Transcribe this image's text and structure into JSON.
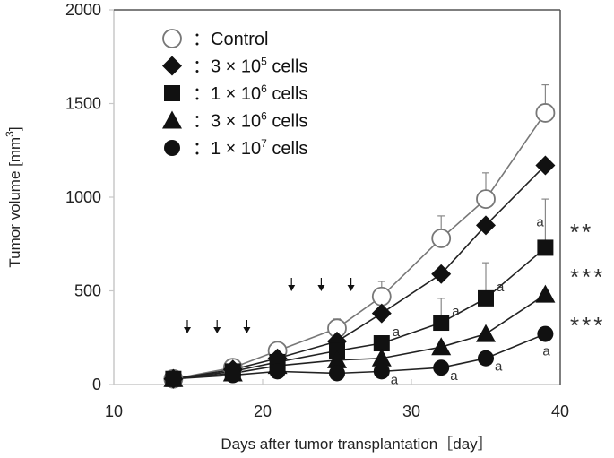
{
  "chart_data": {
    "type": "line",
    "title": "",
    "xlabel": "Days after tumor transplantation［day］",
    "ylabel": "Tumor volume [mm3]",
    "ylabel_main": "Tumor volume [mm",
    "ylabel_sup": "3",
    "ylabel_end": "]",
    "xlim": [
      10,
      40
    ],
    "ylim": [
      0,
      2000
    ],
    "xticks": [
      "10",
      "20",
      "30",
      "40"
    ],
    "xtick_values": [
      10,
      20,
      30,
      40
    ],
    "yticks": [
      "0",
      "500",
      "1000",
      "1500",
      "2000"
    ],
    "ytick_values": [
      0,
      500,
      1000,
      1500,
      2000
    ],
    "grid": false,
    "legend_position": "top-left",
    "x": [
      14,
      18,
      21,
      25,
      28,
      32,
      35,
      39
    ],
    "series": [
      {
        "name": "Control",
        "label_prefix": "：",
        "label_main": "Control",
        "label_sup": "",
        "label_end": "",
        "marker": "circle-open",
        "color": "#777777",
        "values": [
          30,
          90,
          180,
          300,
          470,
          780,
          990,
          1450
        ],
        "errors": [
          0,
          10,
          30,
          50,
          80,
          120,
          140,
          150
        ]
      },
      {
        "name": "3 × 10^5 cells",
        "label_prefix": "：",
        "label_main": "3 × 10",
        "label_sup": "5",
        "label_end": " cells",
        "marker": "diamond",
        "color": "#111111",
        "values": [
          30,
          80,
          140,
          230,
          380,
          590,
          850,
          1170
        ],
        "errors": [
          0,
          0,
          0,
          0,
          0,
          0,
          0,
          0
        ]
      },
      {
        "name": "1 × 10^6 cells",
        "label_prefix": "：",
        "label_main": "1 × 10",
        "label_sup": "6",
        "label_end": " cells",
        "marker": "square",
        "color": "#111111",
        "values": [
          30,
          70,
          120,
          180,
          220,
          330,
          460,
          730
        ],
        "errors": [
          0,
          0,
          0,
          0,
          40,
          130,
          190,
          260
        ]
      },
      {
        "name": "3 × 10^6 cells",
        "label_prefix": "：",
        "label_main": "3 × 10",
        "label_sup": "6",
        "label_end": " cells",
        "marker": "triangle",
        "color": "#111111",
        "values": [
          30,
          60,
          100,
          130,
          140,
          200,
          270,
          480
        ],
        "errors": [
          0,
          0,
          0,
          0,
          0,
          0,
          0,
          0
        ]
      },
      {
        "name": "1 × 10^7 cells",
        "label_prefix": "：",
        "label_main": "1 × 10",
        "label_sup": "7",
        "label_end": " cells",
        "marker": "circle",
        "color": "#111111",
        "values": [
          30,
          50,
          70,
          60,
          70,
          90,
          140,
          270
        ],
        "errors": [
          0,
          0,
          0,
          0,
          0,
          0,
          0,
          0
        ]
      }
    ],
    "annotations": {
      "dose_arrows_days": [
        15,
        17,
        19,
        22,
        24,
        26
      ],
      "letter_marks": [
        {
          "text": "a",
          "series": "1 × 10^6 cells",
          "x": 28
        },
        {
          "text": "a",
          "series": "1 × 10^6 cells",
          "x": 32
        },
        {
          "text": "a",
          "series": "1 × 10^6 cells",
          "x": 35
        },
        {
          "text": "a",
          "series": "1 × 10^6 cells",
          "x": 39
        },
        {
          "text": "a",
          "series": "1 × 10^7 cells",
          "x": 28
        },
        {
          "text": "a",
          "series": "1 × 10^7 cells",
          "x": 32
        },
        {
          "text": "a",
          "series": "1 × 10^7 cells",
          "x": 35
        },
        {
          "text": "a",
          "series": "1 × 10^7 cells",
          "x": 39
        }
      ],
      "significance": [
        {
          "text": "**",
          "series": "1 × 10^6 cells"
        },
        {
          "text": "***",
          "series": "3 × 10^6 cells"
        },
        {
          "text": "***",
          "series": "1 × 10^7 cells"
        }
      ]
    }
  }
}
